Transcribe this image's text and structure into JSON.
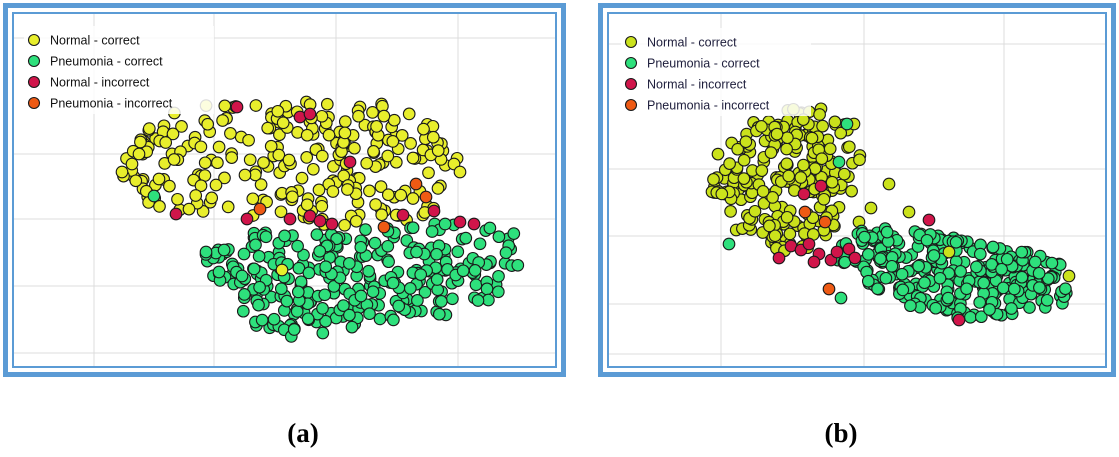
{
  "chart_data": [
    {
      "type": "scatter",
      "panel_label": "(a)",
      "legend": {
        "placement": "top-left"
      },
      "grid": true,
      "series": [
        {
          "name": "Normal - correct",
          "color": "#e8ee2c",
          "cluster": "upper",
          "count": 260
        },
        {
          "name": "Pneumonia - correct",
          "color": "#2ee07c",
          "cluster": "lower",
          "count": 300
        },
        {
          "name": "Normal - incorrect",
          "color": "#d0154a",
          "count": 14
        },
        {
          "name": "Pneumonia - incorrect",
          "color": "#ee5a14",
          "count": 4
        }
      ]
    },
    {
      "type": "scatter",
      "panel_label": "(b)",
      "legend": {
        "placement": "top-left"
      },
      "grid": true,
      "series": [
        {
          "name": "Normal - correct",
          "color": "#cbe21c",
          "cluster": "upper-left",
          "count": 240
        },
        {
          "name": "Pneumonia - correct",
          "color": "#2ee07c",
          "cluster": "lower-right",
          "count": 300
        },
        {
          "name": "Normal - incorrect",
          "color": "#d0154a",
          "count": 14
        },
        {
          "name": "Pneumonia - incorrect",
          "color": "#ee5a14",
          "count": 3
        }
      ]
    }
  ]
}
